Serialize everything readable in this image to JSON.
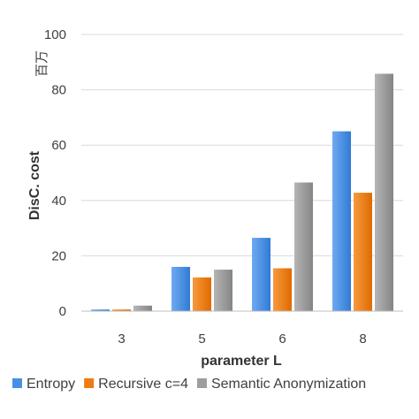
{
  "chart_data": {
    "type": "bar",
    "categories": [
      "3",
      "5",
      "6",
      "8"
    ],
    "series": [
      {
        "name": "Entropy",
        "values": [
          0.6,
          16,
          26.5,
          65
        ],
        "color": "#4A90E2"
      },
      {
        "name": "Recursive c=4",
        "values": [
          0.6,
          12.2,
          15.5,
          42.8
        ],
        "color": "#F07A12"
      },
      {
        "name": "Semantic Anonymization",
        "values": [
          2.0,
          15.0,
          46.5,
          85.8
        ],
        "color": "#9E9E9E"
      }
    ],
    "xlabel": "parameter L",
    "ylabel": "DisC. cost",
    "unit_label": "百万",
    "ylim": [
      0,
      100
    ],
    "yticks": [
      0,
      20,
      40,
      60,
      80,
      100
    ],
    "grid": true,
    "legend_position": "bottom"
  }
}
